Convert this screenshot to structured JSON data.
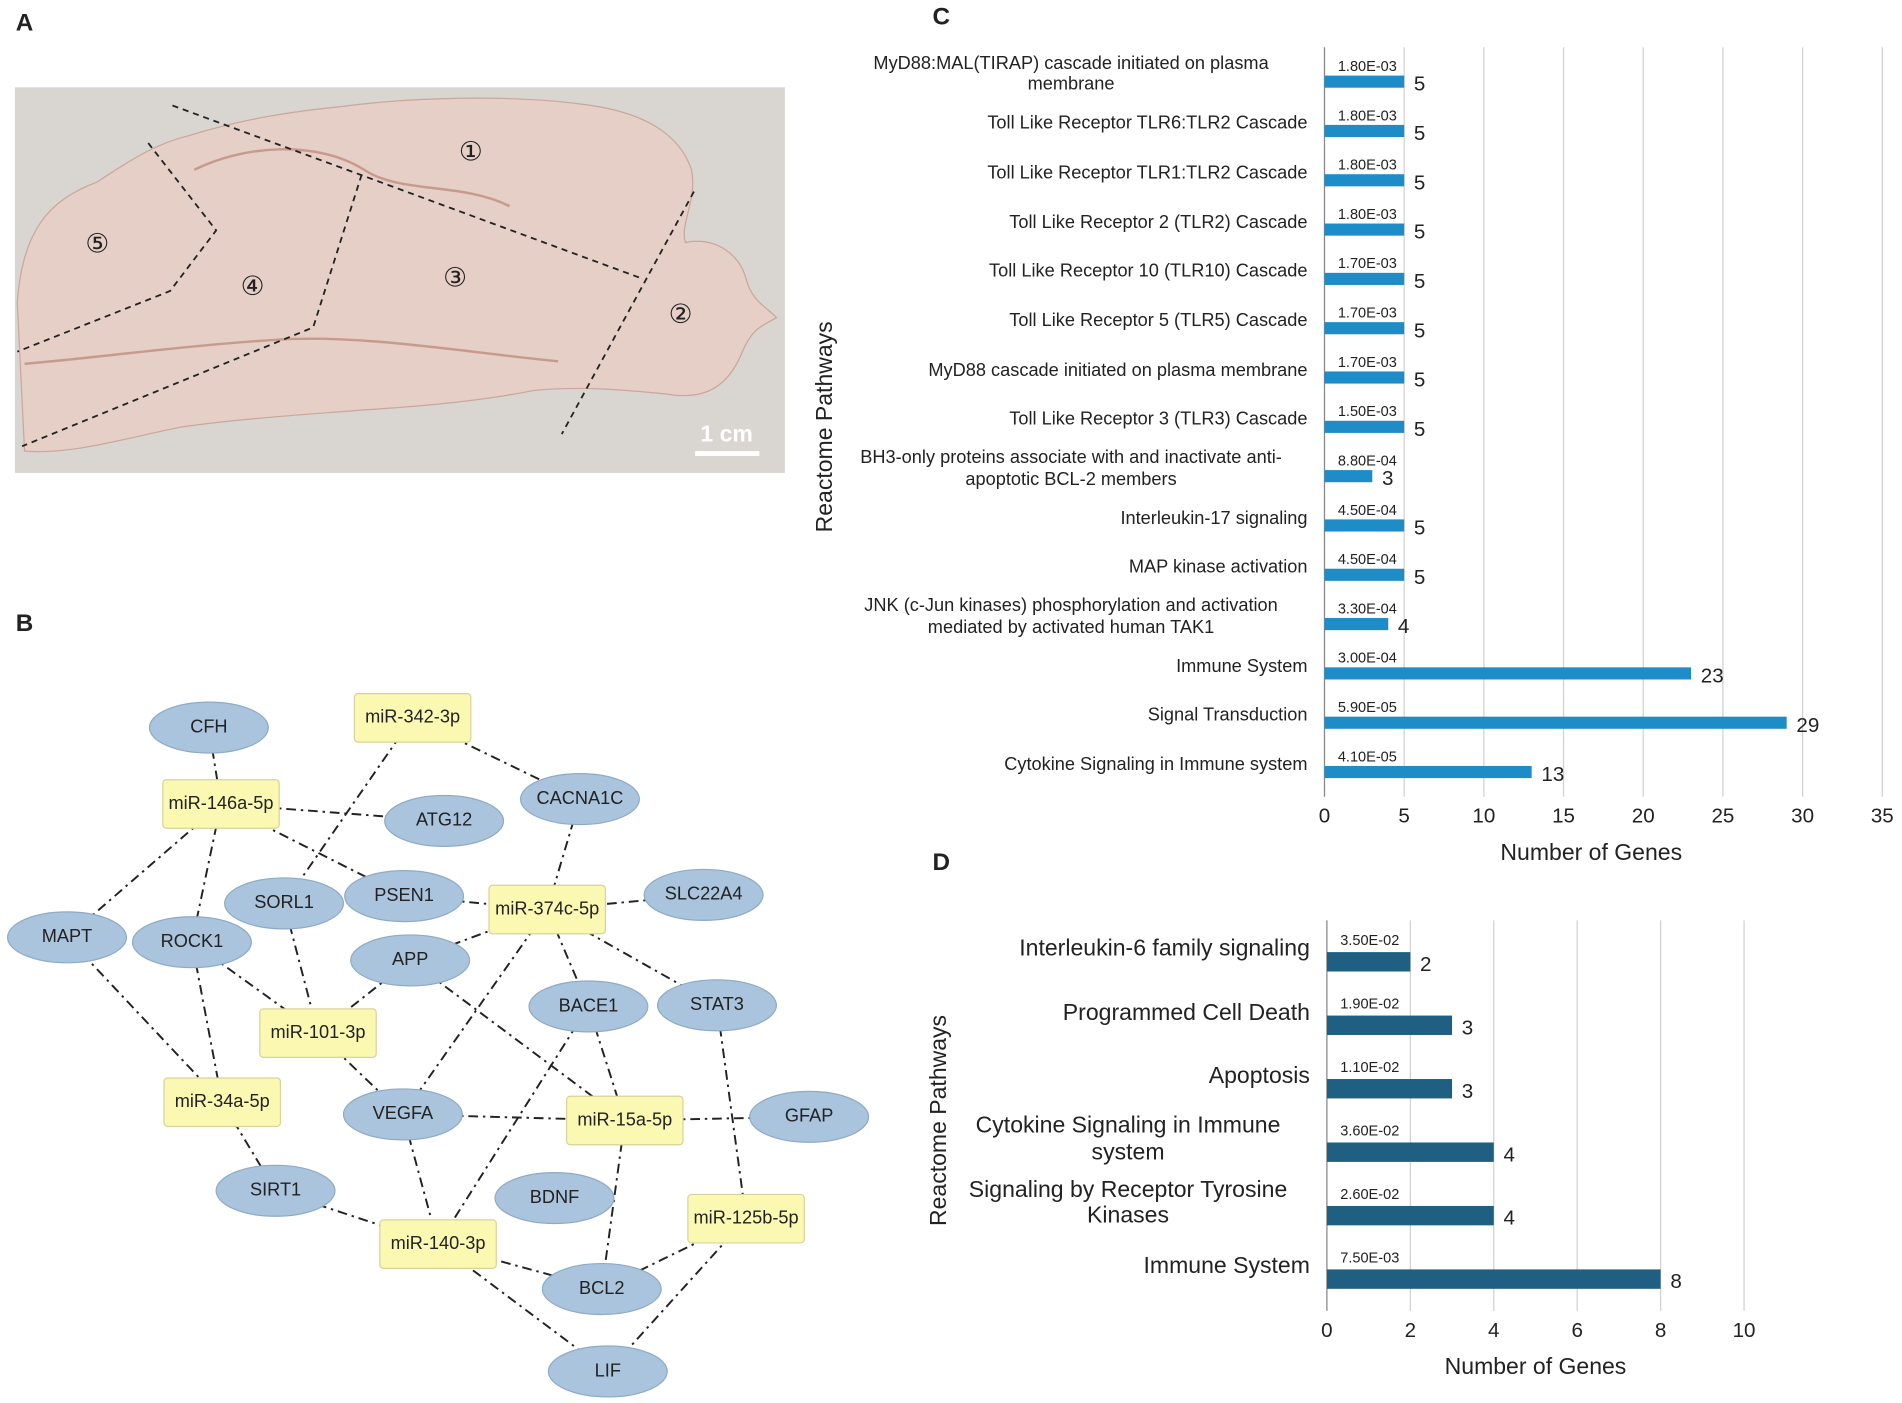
{
  "panel_labels": [
    "A",
    "B",
    "C",
    "D"
  ],
  "photo": {
    "regions": [
      "①",
      "②",
      "③",
      "④",
      "⑤"
    ],
    "scale_bar": "1 cm"
  },
  "network": {
    "genes": [
      "CFH",
      "ATG12",
      "CACNA1C",
      "SORL1",
      "PSEN1",
      "SLC22A4",
      "MAPT",
      "ROCK1",
      "APP",
      "BACE1",
      "STAT3",
      "VEGFA",
      "GFAP",
      "SIRT1",
      "BDNF",
      "BCL2",
      "LIF"
    ],
    "mirnas": [
      "miR-342-3p",
      "miR-146a-5p",
      "miR-374c-5p",
      "miR-101-3p",
      "miR-34a-5p",
      "miR-15a-5p",
      "miR-125b-5p",
      "miR-140-3p"
    ]
  },
  "chart_data": [
    {
      "type": "bar",
      "orientation": "horizontal",
      "categories": [
        "MyD88:MAL(TIRAP) cascade initiated on plasma membrane",
        "Toll Like Receptor TLR6:TLR2 Cascade",
        "Toll Like Receptor TLR1:TLR2 Cascade",
        "Toll Like Receptor 2 (TLR2) Cascade",
        "Toll Like Receptor 10 (TLR10) Cascade",
        "Toll Like Receptor 5 (TLR5) Cascade",
        "MyD88 cascade initiated on plasma membrane",
        "Toll Like Receptor 3 (TLR3) Cascade",
        "BH3-only proteins associate with and inactivate anti-apoptotic BCL-2 members",
        "Interleukin-17 signaling",
        "MAP kinase activation",
        "JNK (c-Jun kinases) phosphorylation and activation mediated by activated human TAK1",
        "Immune System",
        "Signal Transduction",
        "Cytokine Signaling in Immune system"
      ],
      "values": [
        5,
        5,
        5,
        5,
        5,
        5,
        5,
        5,
        3,
        5,
        5,
        4,
        23,
        29,
        13
      ],
      "p_values": [
        "1.80E-03",
        "1.80E-03",
        "1.80E-03",
        "1.80E-03",
        "1.70E-03",
        "1.70E-03",
        "1.70E-03",
        "1.50E-03",
        "8.80E-04",
        "4.50E-04",
        "4.50E-04",
        "3.30E-04",
        "3.00E-04",
        "5.90E-05",
        "4.10E-05"
      ],
      "color": "#1e8cc6",
      "xlim": [
        0,
        35
      ],
      "xticks": [
        0,
        5,
        10,
        15,
        20,
        25,
        30,
        35
      ],
      "grid": true,
      "xlabel": "Number of Genes",
      "ylabel": "Reactome Pathways"
    },
    {
      "type": "bar",
      "orientation": "horizontal",
      "categories": [
        "Interleukin-6 family signaling",
        "Programmed Cell Death",
        "Apoptosis",
        "Cytokine Signaling in Immune system",
        "Signaling by Receptor Tyrosine Kinases",
        "Immune System"
      ],
      "values": [
        2,
        3,
        3,
        4,
        4,
        8
      ],
      "p_values": [
        "3.50E-02",
        "1.90E-02",
        "1.10E-02",
        "3.60E-02",
        "2.60E-02",
        "7.50E-03"
      ],
      "color": "#1f5f82",
      "xlim": [
        0,
        10
      ],
      "xticks": [
        0,
        2,
        4,
        6,
        8,
        10
      ],
      "grid": true,
      "xlabel": "Number of Genes",
      "ylabel": "Reactome Pathways"
    }
  ]
}
